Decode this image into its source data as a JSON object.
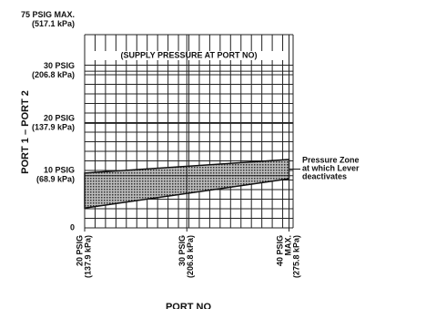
{
  "chart_data": {
    "type": "band",
    "y_axis_label": "PORT 1 – PORT 2",
    "x_axis_label": "PORT NO",
    "y_max_label": [
      "75 PSIG MAX.",
      "(517.1 kPa)"
    ],
    "annotation": "(SUPPLY PRESSURE AT PORT NO)",
    "xlim": [
      20,
      40.4
    ],
    "ylim": [
      0,
      37
    ],
    "xticks": [
      {
        "value": 20,
        "label": [
          "20 PSIG",
          "(137.9 kPa)"
        ]
      },
      {
        "value": 30,
        "label": [
          "30 PSIG",
          "(206.8 kPa)"
        ]
      },
      {
        "value": 40,
        "label": [
          "40 PSIG",
          "MAX.",
          "(275.8 kPa)"
        ]
      }
    ],
    "yticks": [
      0,
      {
        "value": 10,
        "label": [
          "10 PSIG",
          "(68.9 kPa)"
        ]
      },
      {
        "value": 20,
        "label": [
          "20 PSIG",
          "(137.9 kPa)"
        ]
      },
      {
        "value": 30,
        "label": [
          "30 PSIG",
          "(206.8 kPa)"
        ]
      }
    ],
    "grid": true,
    "series": [
      {
        "name": [
          "Pressure Zone",
          "at which Lever",
          "deactivates"
        ],
        "color": "#555555",
        "x": [
          20,
          40
        ],
        "lower": [
          3.8,
          9.4
        ],
        "upper": [
          10.5,
          13.1
        ]
      }
    ]
  }
}
